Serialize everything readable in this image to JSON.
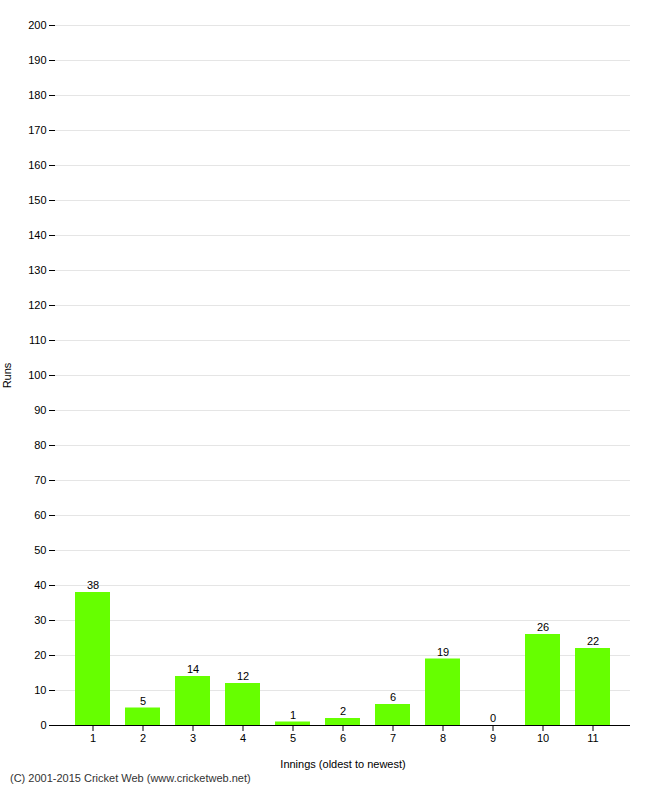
{
  "chart_data": {
    "type": "bar",
    "categories": [
      "1",
      "2",
      "3",
      "4",
      "5",
      "6",
      "7",
      "8",
      "9",
      "10",
      "11"
    ],
    "values": [
      38,
      5,
      14,
      12,
      1,
      2,
      6,
      19,
      0,
      26,
      22
    ],
    "color": "#66ff00",
    "xlabel": "Innings (oldest to newest)",
    "ylabel": "Runs",
    "ylim": [
      0,
      200
    ],
    "yticks": [
      0,
      10,
      20,
      30,
      40,
      50,
      60,
      70,
      80,
      90,
      100,
      110,
      120,
      130,
      140,
      150,
      160,
      170,
      180,
      190,
      200
    ],
    "grid": true,
    "data_labels": true,
    "caption": "(C) 2001-2015 Cricket Web (www.cricketweb.net)"
  }
}
